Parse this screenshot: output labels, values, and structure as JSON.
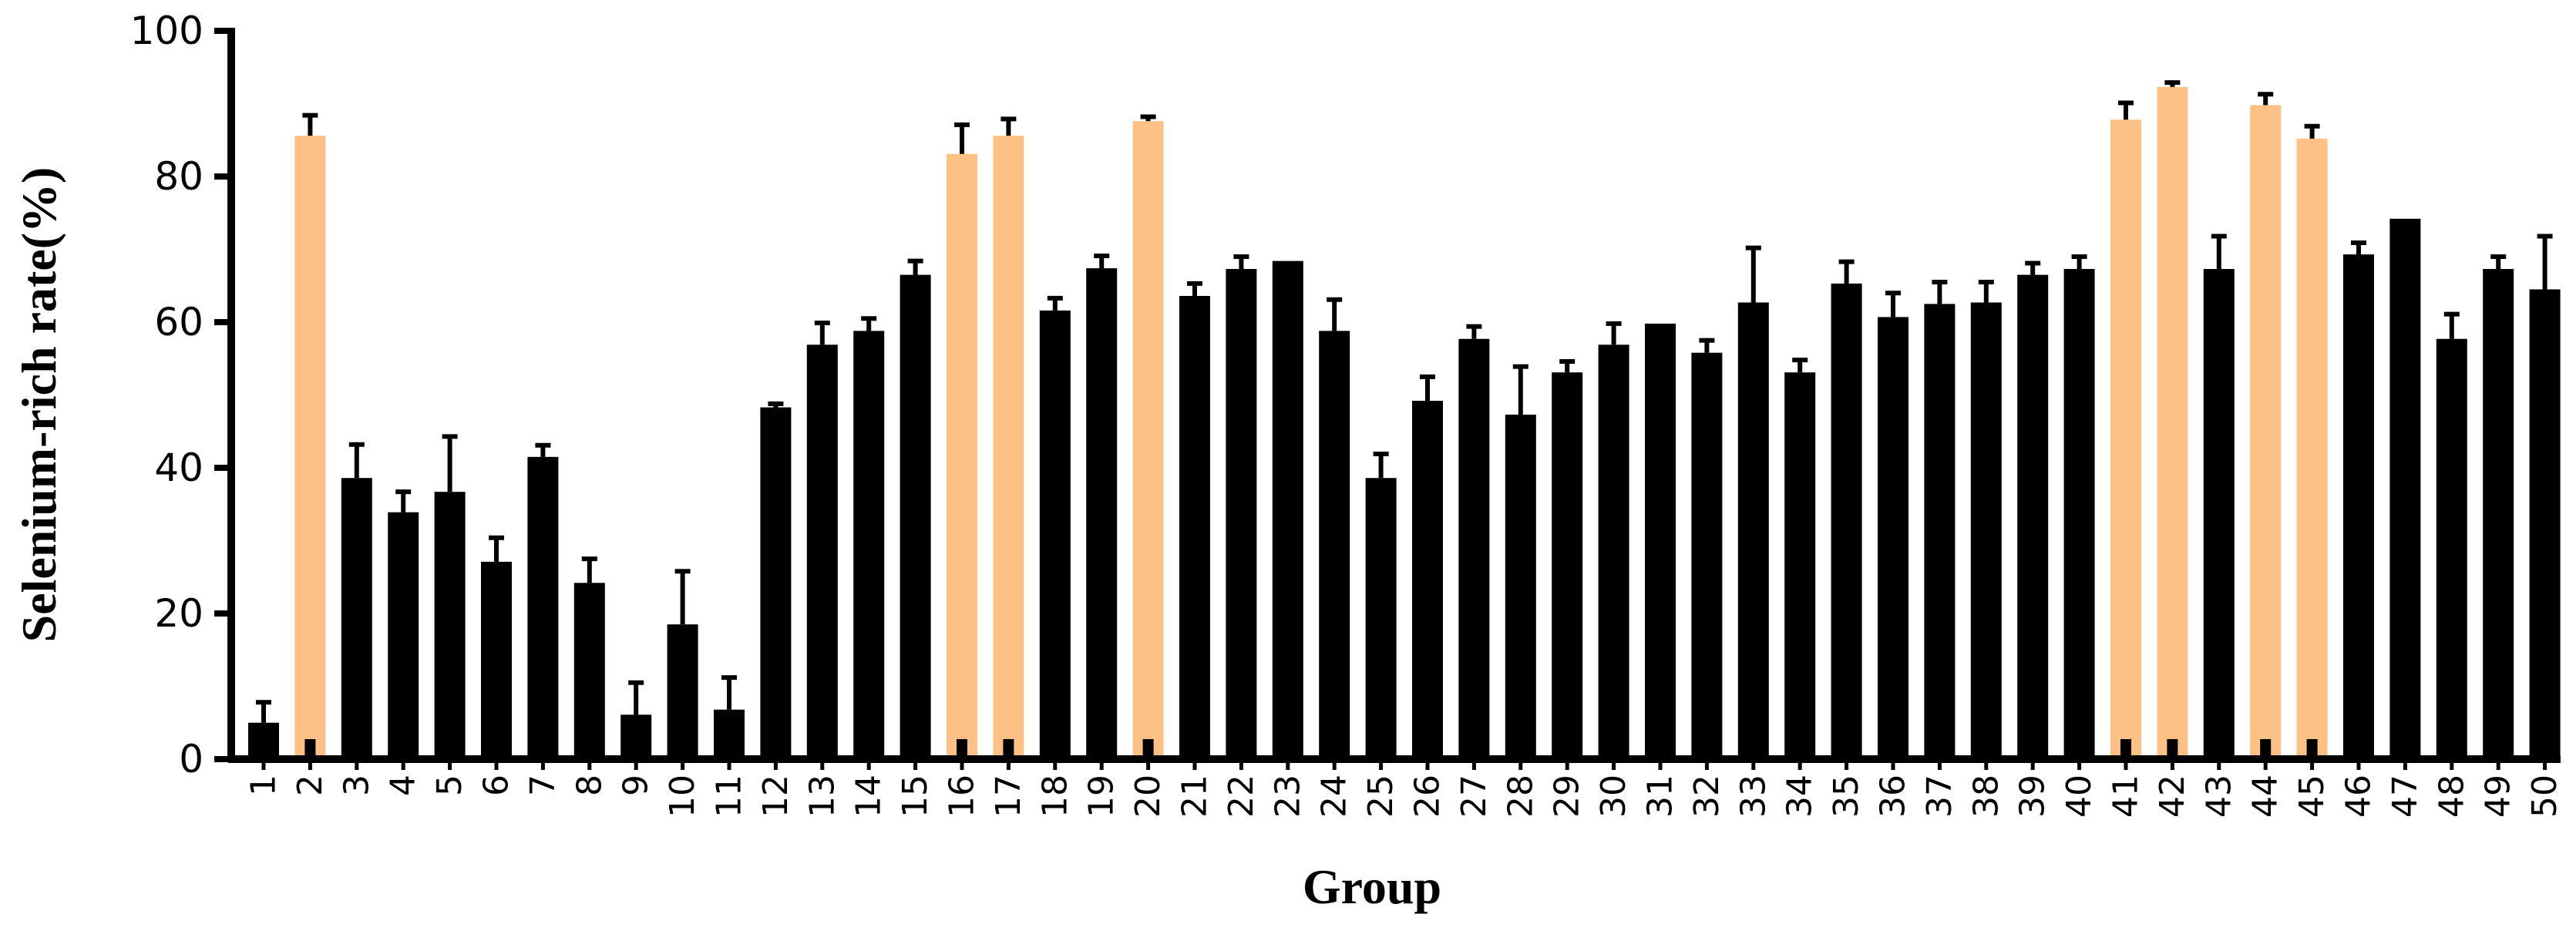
{
  "chart_data": {
    "type": "bar",
    "xlabel": "Group",
    "ylabel": "Selenium-rich rate(%)",
    "ylim": [
      0,
      100
    ],
    "yticks": [
      0,
      20,
      40,
      60,
      80,
      100
    ],
    "grid": false,
    "categories": [
      "1",
      "2",
      "3",
      "4",
      "5",
      "6",
      "7",
      "8",
      "9",
      "10",
      "11",
      "12",
      "13",
      "14",
      "15",
      "16",
      "17",
      "18",
      "19",
      "20",
      "21",
      "22",
      "23",
      "24",
      "25",
      "26",
      "27",
      "28",
      "29",
      "30",
      "31",
      "32",
      "33",
      "34",
      "35",
      "36",
      "37",
      "38",
      "39",
      "40",
      "41",
      "42",
      "43",
      "44",
      "45",
      "46",
      "47",
      "48",
      "49",
      "50"
    ],
    "values": [
      5,
      85.6,
      38.6,
      33.9,
      36.7,
      27.1,
      41.5,
      24.2,
      6.1,
      18.5,
      6.8,
      48.3,
      56.9,
      58.8,
      66.5,
      83.1,
      85.6,
      61.6,
      67.4,
      87.6,
      63.6,
      67.3,
      68.4,
      58.8,
      38.6,
      49.2,
      57.7,
      47.3,
      53.1,
      56.9,
      59.8,
      55.8,
      62.7,
      53.1,
      65.3,
      60.7,
      62.5,
      62.7,
      66.5,
      67.3,
      87.8,
      92.3,
      67.3,
      89.8,
      85.2,
      69.3,
      74.2,
      57.7,
      67.3,
      64.5
    ],
    "errors": [
      2.8,
      2.8,
      4.6,
      2.8,
      7.6,
      3.3,
      1.6,
      3.3,
      4.4,
      7.3,
      4.4,
      0.5,
      3.0,
      1.7,
      1.9,
      4.0,
      2.3,
      1.7,
      1.7,
      0.6,
      1.7,
      1.7,
      0,
      4.3,
      3.3,
      3.3,
      1.7,
      6.6,
      1.5,
      2.9,
      0,
      1.7,
      7.5,
      1.7,
      3.0,
      3.3,
      3.0,
      2.8,
      1.6,
      1.7,
      2.3,
      0.6,
      4.5,
      1.5,
      1.7,
      1.6,
      0,
      3.4,
      1.7,
      7.3
    ],
    "highlighted": [
      "2",
      "16",
      "17",
      "20",
      "41",
      "42",
      "44",
      "45"
    ],
    "colors": {
      "default": "#000000",
      "highlight": "#fdc185",
      "axis": "#000000"
    }
  }
}
